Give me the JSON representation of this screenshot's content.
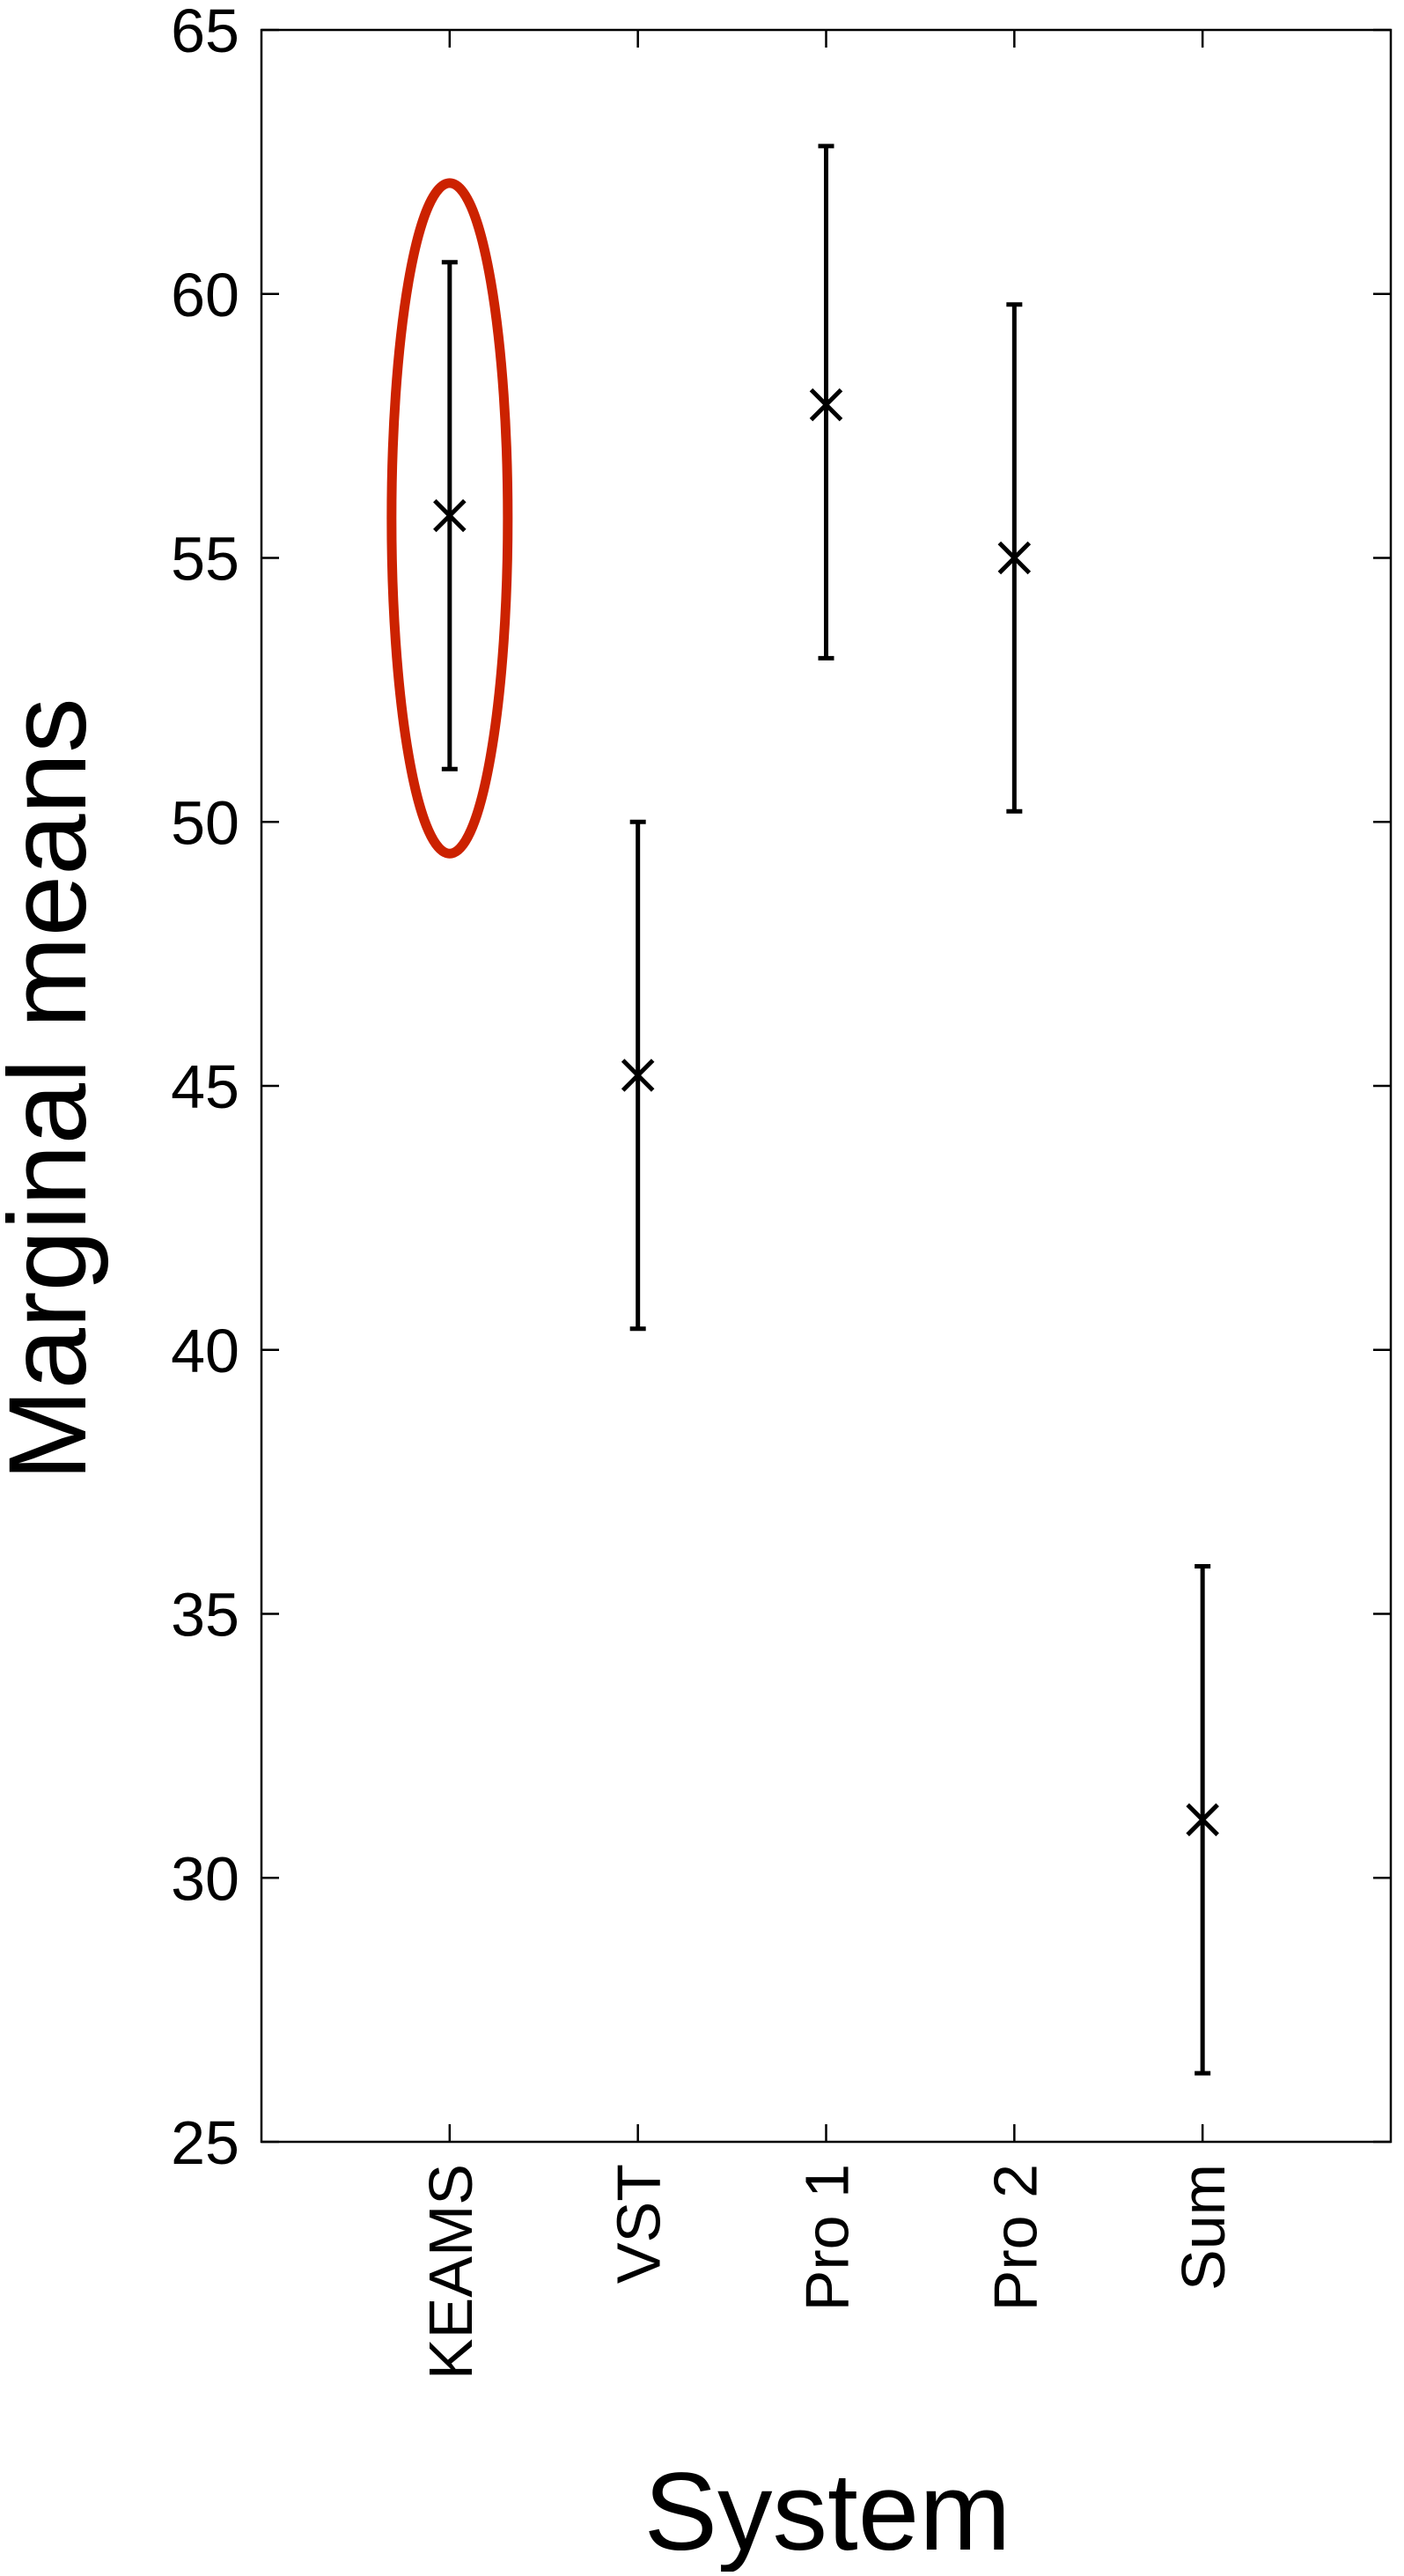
{
  "chart_data": {
    "type": "scatter",
    "xlabel": "System",
    "ylabel": "Marginal means",
    "categories": [
      "KEAMS",
      "VST",
      "Pro 1",
      "Pro 2",
      "Sum"
    ],
    "means": [
      55.8,
      45.2,
      57.9,
      55.0,
      31.1
    ],
    "lower": [
      51.0,
      40.4,
      53.1,
      50.2,
      26.3
    ],
    "upper": [
      60.6,
      50.0,
      62.8,
      59.8,
      35.9
    ],
    "ylim": [
      25,
      65
    ],
    "yticks": [
      "25",
      "30",
      "35",
      "40",
      "45",
      "50",
      "55",
      "60",
      "65"
    ],
    "grid": false,
    "highlight": {
      "category": "KEAMS",
      "shape": "ellipse",
      "color": "#cc2200",
      "y_range": [
        49.4,
        62.1
      ]
    },
    "marker": "x",
    "error_bar_color": "#000000"
  }
}
